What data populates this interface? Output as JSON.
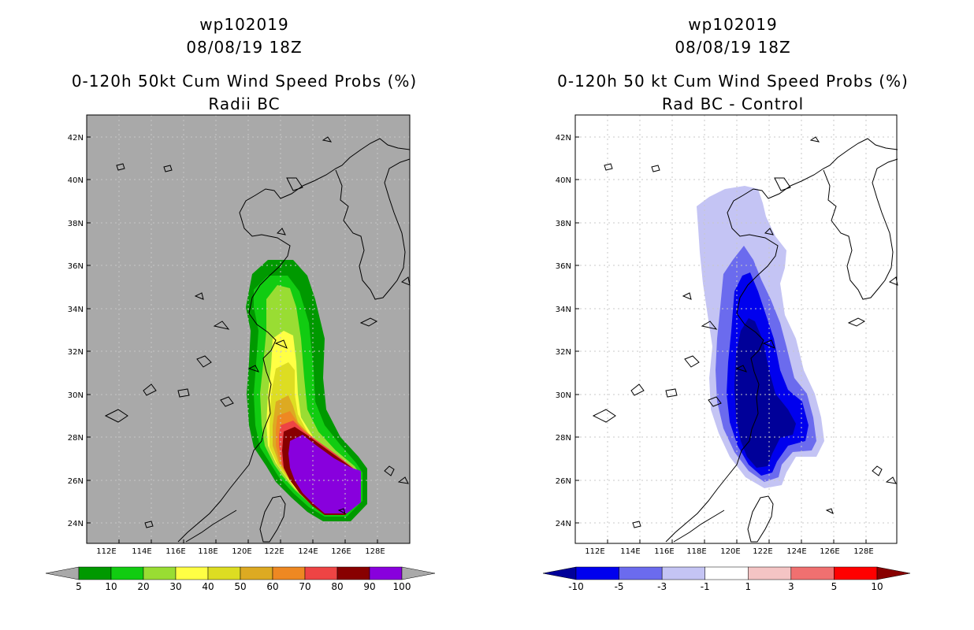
{
  "left": {
    "title_line1": "wp102019",
    "title_line2": "08/08/19 18Z",
    "title_line3": "0-120h 50kt Cum Wind Speed Probs (%)",
    "title_line4": "Radii BC",
    "background_color": "#a9a9a9",
    "colorbar": {
      "colors": [
        "#009900",
        "#11cc11",
        "#99dd33",
        "#ffff44",
        "#dddd22",
        "#ddaa22",
        "#ee8822",
        "#ee4444",
        "#880000",
        "#8800dd"
      ],
      "labels": [
        "5",
        "10",
        "20",
        "30",
        "40",
        "50",
        "60",
        "70",
        "80",
        "90",
        "100"
      ],
      "under_color": "#a9a9a9",
      "over_color": "#a9a9a9"
    }
  },
  "right": {
    "title_line1": "wp102019",
    "title_line2": "08/08/19 18Z",
    "title_line3": "0-120h 50 kt Cum Wind Speed Probs (%)",
    "title_line4": "Rad BC - Control",
    "background_color": "#ffffff",
    "colorbar": {
      "colors": [
        "#0000ee",
        "#6b6bee",
        "#c4c4f4",
        "#ffffff",
        "#f4c4c4",
        "#f07070",
        "#ff0000"
      ],
      "labels": [
        "-10",
        "-5",
        "-3",
        "-1",
        "1",
        "3",
        "5",
        "10"
      ],
      "under_color": "#000099",
      "over_color": "#880000"
    }
  },
  "axes": {
    "lon_labels": [
      "112E",
      "114E",
      "116E",
      "118E",
      "120E",
      "122E",
      "124E",
      "126E",
      "128E"
    ],
    "lat_labels": [
      "42N",
      "40N",
      "38N",
      "36N",
      "34N",
      "32N",
      "30N",
      "28N",
      "26N",
      "24N"
    ]
  }
}
